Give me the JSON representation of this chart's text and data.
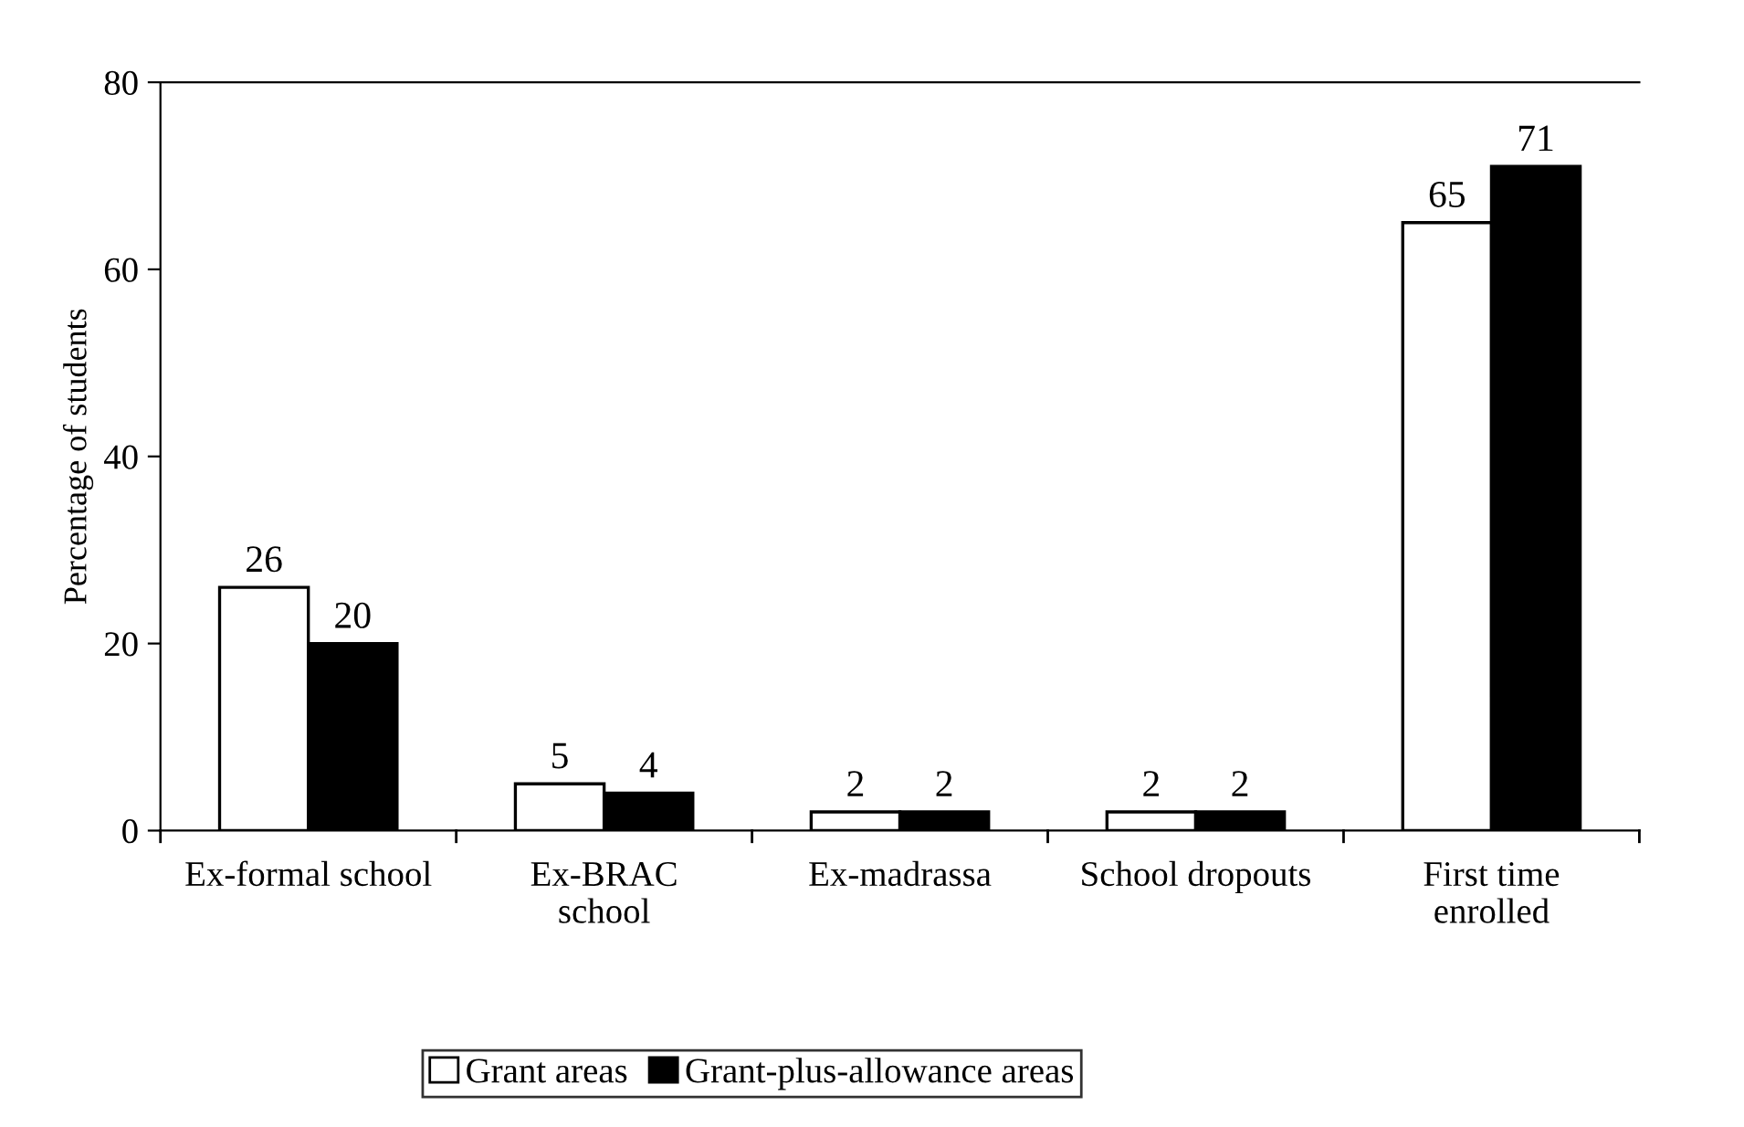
{
  "chart_data": {
    "type": "bar",
    "ylabel": "Percentage of students",
    "categories": [
      "Ex-formal school",
      "Ex-BRAC\nschool",
      "Ex-madrassa",
      "School dropouts",
      "First time\nenrolled"
    ],
    "series": [
      {
        "name": "Grant areas",
        "color": "#ffffff",
        "values": [
          26,
          5,
          2,
          2,
          65
        ]
      },
      {
        "name": "Grant-plus-allowance areas",
        "color": "#000000",
        "values": [
          20,
          4,
          2,
          2,
          71
        ]
      }
    ],
    "ylim": [
      0,
      80
    ],
    "yticks": [
      0,
      20,
      40,
      60,
      80
    ],
    "data_labels": true,
    "grid": false,
    "legend": "bottom"
  }
}
